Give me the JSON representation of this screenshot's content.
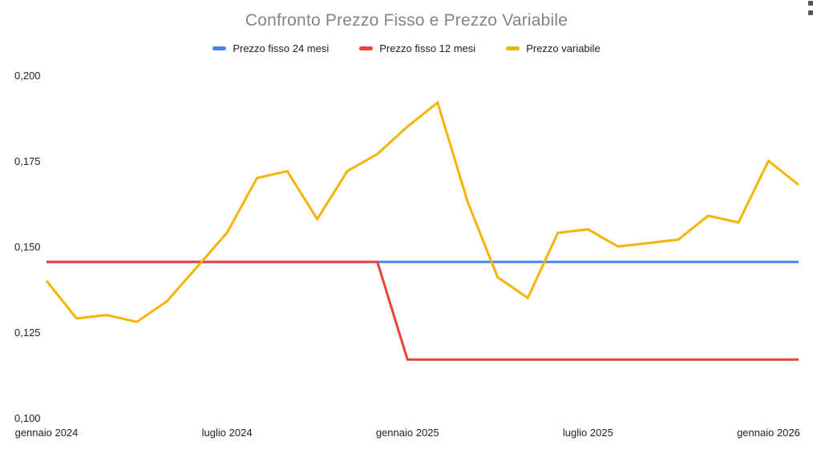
{
  "header": {
    "title": "Confronto Prezzo Fisso e Prezzo Variabile",
    "title_color": "#848484",
    "menu_icon": "kebab-menu-icon"
  },
  "axis": {
    "label_color": "#222222"
  },
  "chart_data": {
    "type": "line",
    "title": "Confronto Prezzo Fisso e Prezzo Variabile",
    "xlabel": "",
    "ylabel": "",
    "grid": false,
    "legend_position": "top",
    "number_format": "comma-decimal",
    "ylim": [
      0.1,
      0.2
    ],
    "x": [
      "gennaio 2024",
      "febbraio 2024",
      "marzo 2024",
      "aprile 2024",
      "maggio 2024",
      "giugno 2024",
      "luglio 2024",
      "agosto 2024",
      "settembre 2024",
      "ottobre 2024",
      "novembre 2024",
      "dicembre 2024",
      "gennaio 2025",
      "febbraio 2025",
      "marzo 2025",
      "aprile 2025",
      "maggio 2025",
      "giugno 2025",
      "luglio 2025",
      "agosto 2025",
      "settembre 2025",
      "ottobre 2025",
      "novembre 2025",
      "dicembre 2025",
      "gennaio 2026",
      "febbraio 2026"
    ],
    "series": [
      {
        "name": "Prezzo fisso 24 mesi",
        "color": "#4285F4",
        "values": [
          0.1455,
          0.1455,
          0.1455,
          0.1455,
          0.1455,
          0.1455,
          0.1455,
          0.1455,
          0.1455,
          0.1455,
          0.1455,
          0.1455,
          0.1455,
          0.1455,
          0.1455,
          0.1455,
          0.1455,
          0.1455,
          0.1455,
          0.1455,
          0.1455,
          0.1455,
          0.1455,
          0.1455,
          0.1455,
          0.1455
        ]
      },
      {
        "name": "Prezzo fisso 12 mesi",
        "color": "#EA4335",
        "values": [
          0.1455,
          0.1455,
          0.1455,
          0.1455,
          0.1455,
          0.1455,
          0.1455,
          0.1455,
          0.1455,
          0.1455,
          0.1455,
          0.1455,
          0.117,
          0.117,
          0.117,
          0.117,
          0.117,
          0.117,
          0.117,
          0.117,
          0.117,
          0.117,
          0.117,
          0.117,
          0.117,
          0.117
        ]
      },
      {
        "name": "Prezzo variabile",
        "color": "#F4B400",
        "values": [
          0.14,
          0.129,
          0.13,
          0.128,
          0.134,
          0.144,
          0.154,
          0.17,
          0.172,
          0.158,
          0.172,
          0.177,
          0.185,
          0.192,
          0.163,
          0.141,
          0.135,
          0.154,
          0.155,
          0.15,
          0.151,
          0.152,
          0.159,
          0.157,
          0.175,
          0.168
        ]
      }
    ],
    "yticks": [
      {
        "label": "0,200",
        "value": 0.2
      },
      {
        "label": "0,175",
        "value": 0.175
      },
      {
        "label": "0,150",
        "value": 0.15
      },
      {
        "label": "0,125",
        "value": 0.125
      },
      {
        "label": "0,100",
        "value": 0.1
      }
    ],
    "xticks": [
      {
        "label": "gennaio 2024",
        "x_index": 0
      },
      {
        "label": "luglio 2024",
        "x_index": 6
      },
      {
        "label": "gennaio 2025",
        "x_index": 12
      },
      {
        "label": "luglio 2025",
        "x_index": 18
      },
      {
        "label": "gennaio 2026",
        "x_index": 24
      }
    ]
  }
}
